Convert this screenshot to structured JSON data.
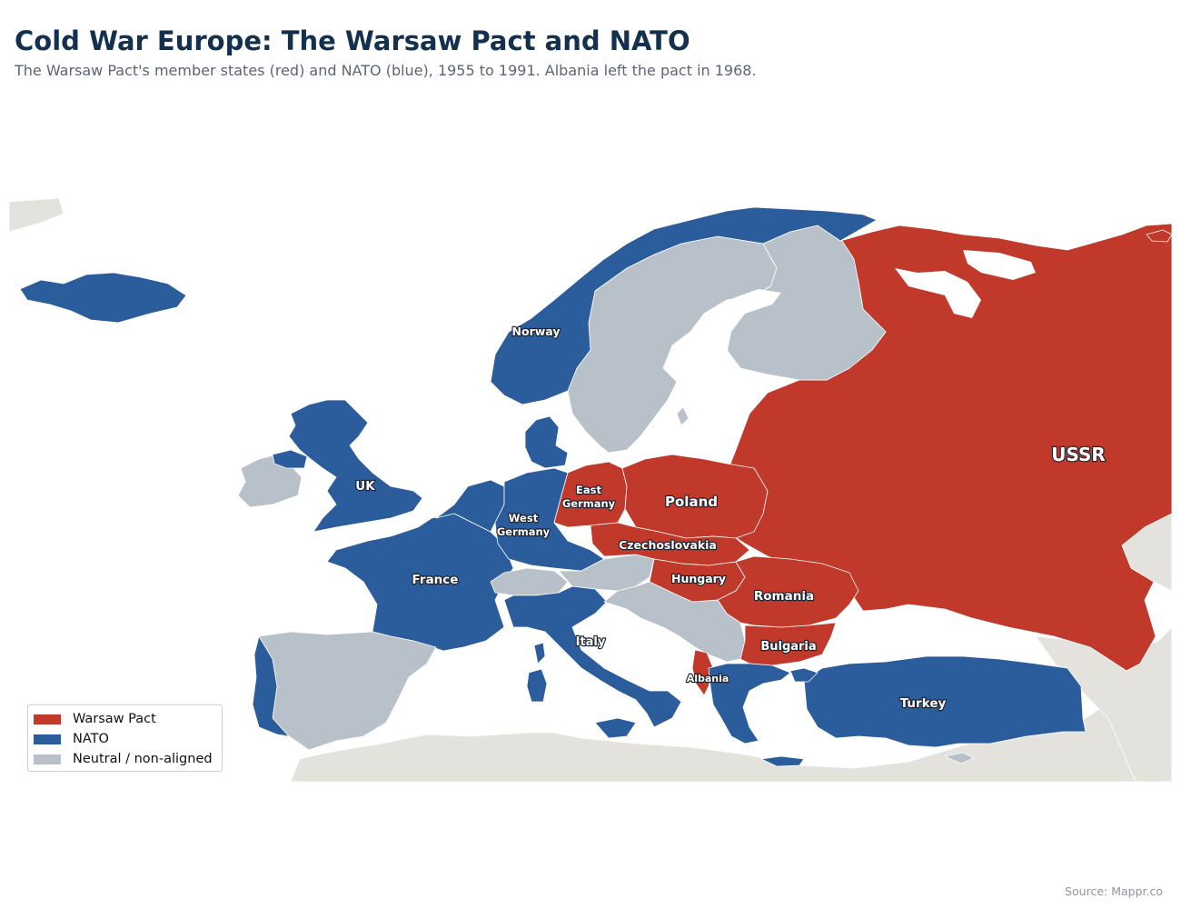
{
  "header": {
    "title": "Cold War Europe: The Warsaw Pact and NATO",
    "subtitle": "The Warsaw Pact's member states (red) and NATO (blue), 1955 to 1991. Albania left the pact in 1968."
  },
  "colors": {
    "warsaw": "#c0392b",
    "nato": "#2b5c9b",
    "neutral": "#b8c0ca",
    "outside": "#e3e2dd",
    "sea": "#ffffff"
  },
  "map": {
    "labels": {
      "norway": "Norway",
      "uk": "UK",
      "east_germany_1": "East",
      "east_germany_2": "Germany",
      "west_germany_1": "West",
      "west_germany_2": "Germany",
      "poland": "Poland",
      "czechoslovakia": "Czechoslovakia",
      "france": "France",
      "hungary": "Hungary",
      "romania": "Romania",
      "italy": "Italy",
      "bulgaria": "Bulgaria",
      "albania": "Albania",
      "turkey": "Turkey",
      "ussr": "USSR"
    }
  },
  "legend": {
    "items": [
      {
        "label": "Warsaw Pact",
        "color": "#c0392b"
      },
      {
        "label": "NATO",
        "color": "#2b5c9b"
      },
      {
        "label": "Neutral / non-aligned",
        "color": "#b8c0ca"
      }
    ]
  },
  "footer": {
    "source": "Source: Mappr.co"
  }
}
